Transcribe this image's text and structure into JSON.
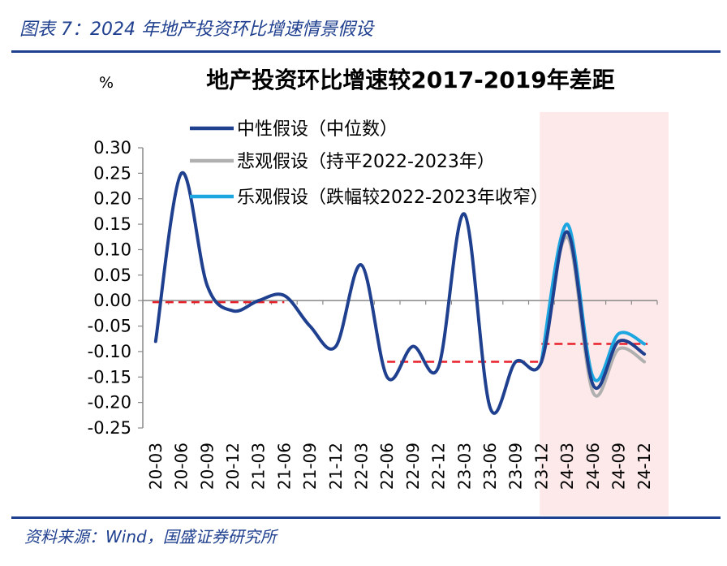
{
  "figure": {
    "caption": "图表 7：2024 年地产投资环比增速情景假设",
    "source": "资料来源：Wind，国盛证券研究所"
  },
  "chart_data": {
    "type": "line",
    "title": "地产投资环比增速较2017-2019年差距",
    "unit": "%",
    "ylim": [
      -0.25,
      0.3
    ],
    "yticks": [
      "0.30",
      "0.25",
      "0.20",
      "0.15",
      "0.10",
      "0.05",
      "0.00",
      "-0.05",
      "-0.10",
      "-0.15",
      "-0.20",
      "-0.25"
    ],
    "ytick_values": [
      0.3,
      0.25,
      0.2,
      0.15,
      0.1,
      0.05,
      0.0,
      -0.05,
      -0.1,
      -0.15,
      -0.2,
      -0.25
    ],
    "categories": [
      "20-03",
      "20-06",
      "20-09",
      "20-12",
      "21-03",
      "21-06",
      "21-09",
      "21-12",
      "22-03",
      "22-06",
      "22-09",
      "22-12",
      "23-03",
      "23-06",
      "23-09",
      "23-12",
      "24-03",
      "24-06",
      "24-09",
      "24-12"
    ],
    "series": [
      {
        "name": "中性假设（中位数）",
        "color": "#1f3f8f",
        "values": [
          -0.08,
          0.25,
          0.03,
          -0.02,
          0.0,
          0.01,
          -0.05,
          -0.09,
          0.07,
          -0.15,
          -0.09,
          -0.13,
          0.17,
          -0.21,
          -0.12,
          -0.12,
          0.135,
          -0.165,
          -0.08,
          -0.105
        ]
      },
      {
        "name": "悲观假设（持平2022-2023年）",
        "color": "#b0b0b0",
        "values": [
          null,
          null,
          null,
          null,
          null,
          null,
          null,
          null,
          null,
          null,
          null,
          null,
          null,
          null,
          null,
          -0.12,
          0.125,
          -0.18,
          -0.095,
          -0.12
        ]
      },
      {
        "name": "乐观假设（跌幅较2022-2023年收窄）",
        "color": "#1ea6e0",
        "values": [
          null,
          null,
          null,
          null,
          null,
          null,
          null,
          null,
          null,
          null,
          null,
          null,
          null,
          null,
          null,
          -0.12,
          0.15,
          -0.15,
          -0.065,
          -0.085
        ]
      }
    ],
    "reference_lines": [
      {
        "from": "20-03",
        "to": "21-06",
        "value": -0.003
      },
      {
        "from": "22-06",
        "to": "23-12",
        "value": -0.12
      },
      {
        "from": "23-12",
        "to": "24-12",
        "value": -0.085
      }
    ],
    "reference_color": "#e8202a",
    "highlight": {
      "from": "23-12",
      "to": "24-12",
      "color": "#fde9e9"
    },
    "legend_position": "top"
  }
}
